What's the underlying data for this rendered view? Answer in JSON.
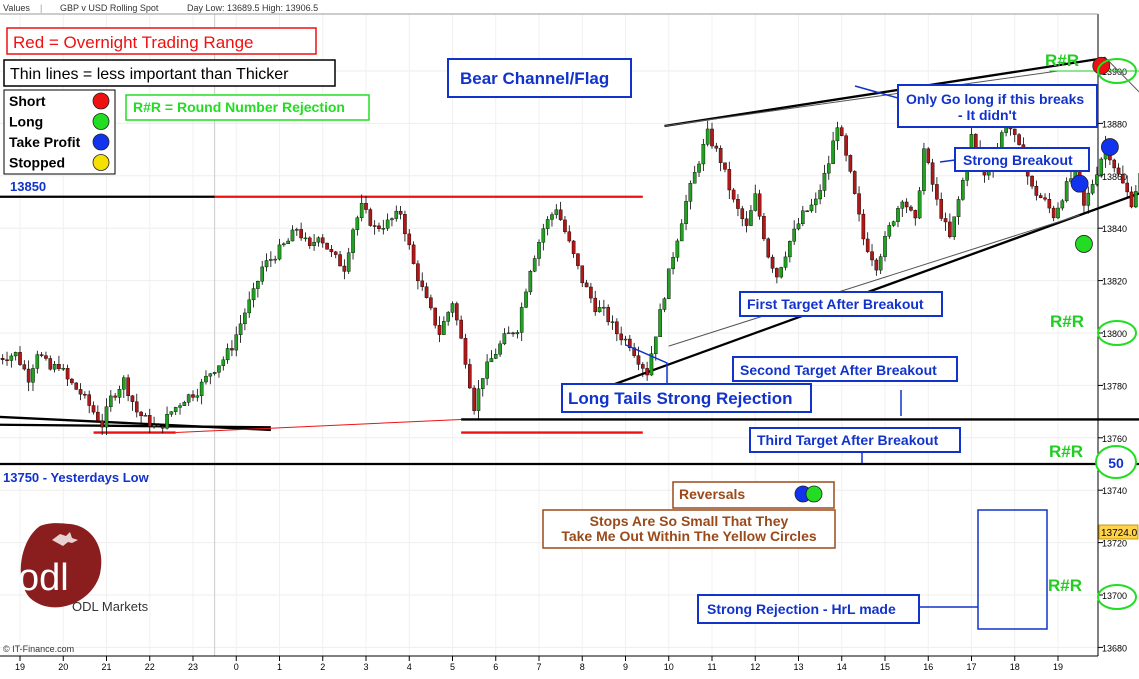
{
  "header": {
    "values_label": "Values",
    "instrument": "GBP v USD Rolling Spot",
    "day_low_high": "Day Low: 13689.5 High: 13906.5"
  },
  "footer": {
    "source": "© IT-Finance.com"
  },
  "logo": {
    "mark_text": "odl",
    "brand": "ODL Markets"
  },
  "chart_data": {
    "type": "candlestick",
    "title": "",
    "ylim": [
      13675,
      13930
    ],
    "y_ticks": [
      13680,
      13700,
      13720,
      13740,
      13760,
      13780,
      13800,
      13820,
      13840,
      13860,
      13880,
      13900
    ],
    "x_tick_labels": [
      "19",
      "20",
      "21",
      "22",
      "23",
      "0",
      "1",
      "2",
      "3",
      "4",
      "5",
      "6",
      "7",
      "8",
      "9",
      "10",
      "11",
      "12",
      "13",
      "14",
      "15",
      "16",
      "17",
      "18",
      "19"
    ],
    "last_price": "13724.0",
    "colors": {
      "up": "#22a022",
      "down": "#b01818",
      "short": "#ee1111",
      "long": "#22dd22",
      "take_profit": "#1133ee",
      "stopped": "#f5e000"
    },
    "ohlc_path": [
      [
        -0.5,
        13790
      ],
      [
        0,
        13792
      ],
      [
        0.3,
        13783
      ],
      [
        0.5,
        13793
      ],
      [
        0.8,
        13786
      ],
      [
        1.0,
        13788
      ],
      [
        1.2,
        13782
      ],
      [
        1.5,
        13777
      ],
      [
        1.8,
        13770
      ],
      [
        2.0,
        13765
      ],
      [
        2.2,
        13775
      ],
      [
        2.5,
        13782
      ],
      [
        2.8,
        13770
      ],
      [
        3.0,
        13767
      ],
      [
        3.3,
        13763
      ],
      [
        3.6,
        13770
      ],
      [
        3.9,
        13775
      ],
      [
        4.2,
        13778
      ],
      [
        4.5,
        13785
      ],
      [
        4.8,
        13790
      ],
      [
        5.0,
        13795
      ],
      [
        5.3,
        13808
      ],
      [
        5.5,
        13815
      ],
      [
        5.7,
        13825
      ],
      [
        6.0,
        13830
      ],
      [
        6.3,
        13835
      ],
      [
        6.5,
        13840
      ],
      [
        6.8,
        13832
      ],
      [
        7.0,
        13838
      ],
      [
        7.3,
        13830
      ],
      [
        7.6,
        13825
      ],
      [
        7.8,
        13840
      ],
      [
        8.0,
        13848
      ],
      [
        8.3,
        13840
      ],
      [
        8.6,
        13842
      ],
      [
        8.9,
        13846
      ],
      [
        9.2,
        13826
      ],
      [
        9.5,
        13812
      ],
      [
        9.8,
        13800
      ],
      [
        10.1,
        13812
      ],
      [
        10.4,
        13790
      ],
      [
        10.6,
        13772
      ],
      [
        10.8,
        13784
      ],
      [
        11.0,
        13790
      ],
      [
        11.3,
        13798
      ],
      [
        11.6,
        13802
      ],
      [
        11.9,
        13825
      ],
      [
        12.2,
        13840
      ],
      [
        12.5,
        13848
      ],
      [
        12.8,
        13834
      ],
      [
        13.1,
        13820
      ],
      [
        13.4,
        13810
      ],
      [
        13.6,
        13808
      ],
      [
        13.9,
        13800
      ],
      [
        14.2,
        13796
      ],
      [
        14.4,
        13790
      ],
      [
        14.6,
        13785
      ],
      [
        14.8,
        13800
      ],
      [
        15.0,
        13815
      ],
      [
        15.2,
        13830
      ],
      [
        15.5,
        13850
      ],
      [
        15.8,
        13866
      ],
      [
        16.0,
        13876
      ],
      [
        16.3,
        13866
      ],
      [
        16.6,
        13850
      ],
      [
        16.9,
        13840
      ],
      [
        17.1,
        13852
      ],
      [
        17.4,
        13830
      ],
      [
        17.6,
        13822
      ],
      [
        17.9,
        13835
      ],
      [
        18.2,
        13845
      ],
      [
        18.5,
        13850
      ],
      [
        18.8,
        13865
      ],
      [
        19.0,
        13880
      ],
      [
        19.3,
        13860
      ],
      [
        19.6,
        13836
      ],
      [
        19.9,
        13826
      ],
      [
        20.2,
        13840
      ],
      [
        20.5,
        13852
      ],
      [
        20.8,
        13842
      ],
      [
        21.0,
        13870
      ],
      [
        21.3,
        13850
      ],
      [
        21.6,
        13836
      ],
      [
        21.9,
        13858
      ],
      [
        22.1,
        13875
      ],
      [
        22.4,
        13860
      ],
      [
        22.7,
        13870
      ],
      [
        22.9,
        13882
      ],
      [
        23.2,
        13870
      ],
      [
        23.5,
        13855
      ],
      [
        23.8,
        13850
      ],
      [
        24.0,
        13845
      ],
      [
        24.3,
        13856
      ],
      [
        24.5,
        13862
      ],
      [
        24.7,
        13848
      ],
      [
        25.0,
        13862
      ],
      [
        25.2,
        13872
      ],
      [
        25.5,
        13860
      ],
      [
        25.8,
        13850
      ],
      [
        26.0,
        13860
      ],
      [
        26.3,
        13853
      ],
      [
        26.6,
        13850
      ],
      [
        27.0,
        13850
      ],
      [
        27.4,
        13836
      ],
      [
        27.7,
        13830
      ],
      [
        28.0,
        13838
      ],
      [
        28.2,
        13815
      ],
      [
        28.5,
        13800
      ],
      [
        28.8,
        13795
      ],
      [
        29.0,
        13775
      ],
      [
        29.2,
        13768
      ],
      [
        29.5,
        13790
      ],
      [
        29.7,
        13792
      ],
      [
        29.9,
        13776
      ],
      [
        30.1,
        13760
      ],
      [
        30.3,
        13740
      ],
      [
        30.5,
        13720
      ],
      [
        30.8,
        13706
      ],
      [
        31.0,
        13718
      ],
      [
        31.3,
        13722
      ],
      [
        31.5,
        13710
      ],
      [
        31.8,
        13703
      ],
      [
        32.0,
        13710
      ],
      [
        32.3,
        13718
      ],
      [
        32.5,
        13724
      ]
    ],
    "series": [
      {
        "name": "Short",
        "points": [
          [
            25.0,
            13902
          ],
          [
            26.5,
            13879
          ],
          [
            27.5,
            13856
          ],
          [
            27.9,
            13850
          ],
          [
            29.6,
            13813
          ],
          [
            30.0,
            13804
          ],
          [
            31.1,
            13746
          ]
        ]
      },
      {
        "name": "Long",
        "points": [
          [
            24.6,
            13834
          ],
          [
            29.5,
            13769
          ],
          [
            30.2,
            13753
          ],
          [
            30.9,
            13719
          ],
          [
            31.5,
            13699
          ],
          [
            31.9,
            13691
          ],
          [
            32.5,
            13700
          ]
        ]
      },
      {
        "name": "Take Profit",
        "points": [
          [
            24.5,
            13857
          ],
          [
            25.2,
            13871
          ],
          [
            26.9,
            13840
          ],
          [
            27.2,
            13820
          ],
          [
            29.1,
            13770
          ],
          [
            30.6,
            13788
          ],
          [
            30.7,
            13774
          ],
          [
            30.5,
            13719
          ],
          [
            31.2,
            13719
          ]
        ]
      },
      {
        "name": "Stopped",
        "points": [
          [
            31.3,
            13704
          ]
        ]
      }
    ],
    "trend_lines": [
      {
        "name": "descending-trendline",
        "weight": "thick",
        "color": "#000000",
        "points": [
          [
            -0.5,
            13768
          ],
          [
            5.8,
            13763
          ]
        ]
      },
      {
        "name": "descending-trendline-start",
        "weight": "thick",
        "color": "#000000",
        "points": [
          [
            -0.5,
            13765
          ],
          [
            5.8,
            13764
          ]
        ]
      },
      {
        "name": "red-range-low-left",
        "weight": "thick",
        "color": "#ee1111",
        "points": [
          [
            1.7,
            13762
          ],
          [
            3.6,
            13762
          ]
        ]
      },
      {
        "name": "red-range-thin-rise",
        "weight": "thin",
        "color": "#ee1111",
        "points": [
          [
            3.6,
            13762
          ],
          [
            10.2,
            13767
          ]
        ]
      },
      {
        "name": "red-range-low-right",
        "weight": "thick",
        "color": "#ee1111",
        "points": [
          [
            10.2,
            13762
          ],
          [
            14.4,
            13762
          ]
        ]
      },
      {
        "name": "red-range-high",
        "weight": "thick",
        "color": "#ee1111",
        "points": [
          [
            4.5,
            13852
          ],
          [
            14.4,
            13852
          ]
        ]
      },
      {
        "name": "level-13850",
        "weight": "thick",
        "color": "#000000",
        "points": [
          [
            -0.5,
            13852
          ],
          [
            4.5,
            13852
          ]
        ]
      },
      {
        "name": "level-13750",
        "weight": "thick",
        "color": "#000000",
        "points": [
          [
            -0.5,
            13750
          ],
          [
            33.6,
            13750
          ]
        ]
      },
      {
        "name": "support-13767",
        "weight": "thick",
        "color": "#000000",
        "points": [
          [
            10.2,
            13767
          ],
          [
            31.6,
            13767
          ]
        ]
      },
      {
        "name": "flag-upper",
        "weight": "thick",
        "color": "#000000",
        "points": [
          [
            14.9,
            13879
          ],
          [
            25.1,
            13905
          ]
        ]
      },
      {
        "name": "flag-lower",
        "weight": "thick",
        "color": "#000000",
        "points": [
          [
            13.0,
            13776
          ],
          [
            27.5,
            13863
          ]
        ]
      },
      {
        "name": "flag-inner-upper",
        "weight": "thin",
        "color": "#555555",
        "points": [
          [
            14.9,
            13879
          ],
          [
            24.0,
            13900
          ]
        ]
      },
      {
        "name": "flag-inner-lower",
        "weight": "thin",
        "color": "#555555",
        "points": [
          [
            15.0,
            13795
          ],
          [
            24.5,
            13845
          ]
        ]
      },
      {
        "name": "downtrend-resistance",
        "weight": "thin",
        "color": "#555555",
        "points": [
          [
            25.1,
            13905
          ],
          [
            28.8,
            13843
          ]
        ]
      },
      {
        "name": "level-13900",
        "weight": "thin",
        "color": "#22cc22",
        "points": [
          [
            23.8,
            13900
          ],
          [
            33.6,
            13900
          ]
        ]
      },
      {
        "name": "level-13817",
        "weight": "thin",
        "color": "#555555",
        "points": [
          [
            29.4,
            13817
          ],
          [
            33.6,
            13817
          ]
        ]
      },
      {
        "name": "level-13800",
        "weight": "thin",
        "color": "#22cc22",
        "points": [
          [
            30.3,
            13800
          ],
          [
            33.6,
            13800
          ]
        ]
      },
      {
        "name": "level-13700",
        "weight": "thin",
        "color": "#22cc22",
        "points": [
          [
            32.0,
            13700
          ],
          [
            33.6,
            13700
          ]
        ]
      }
    ],
    "annotations": {
      "overnight_range": "Red = Overnight Trading Range",
      "thin_lines": "Thin lines = less important than Thicker",
      "rr_legend": "R#R = Round  Number Rejection",
      "bear_channel": "Bear Channel/Flag",
      "only_go_long_line1": "Only Go long if this breaks",
      "only_go_long_line2": "- It didn't",
      "strong_breakout": "Strong Breakout",
      "first_target": "First Target After Breakout",
      "second_target": "Second Target After Breakout",
      "third_target": "Third Target After Breakout",
      "long_tails": "Long Tails Strong Rejection",
      "reversals": "Reversals",
      "stops_line1": "Stops Are So Small That They",
      "stops_line2": "Take Me Out Within The Yellow Circles",
      "strong_rejection": "Strong Rejection - HrL made",
      "level_13850": "13850",
      "level_13750": "13750 - Yesterdays Low",
      "rr_label": "R#R",
      "round_50": "50"
    },
    "legend": [
      {
        "label": "Short",
        "color": "#ee1111"
      },
      {
        "label": "Long",
        "color": "#22dd22"
      },
      {
        "label": "Take Profit",
        "color": "#1133ee"
      },
      {
        "label": "Stopped",
        "color": "#f5e000"
      }
    ]
  }
}
